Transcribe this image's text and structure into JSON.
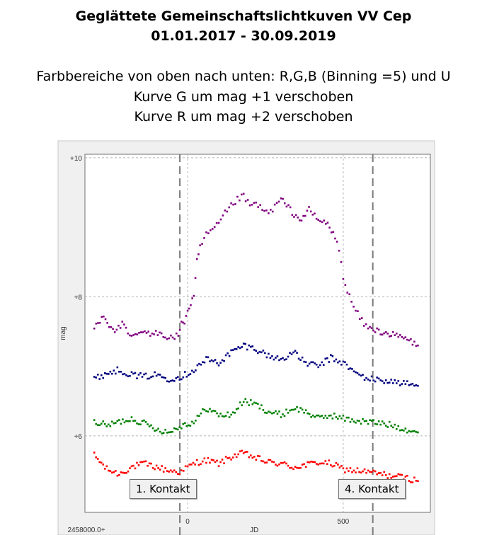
{
  "header": {
    "title_line1": "Geglättete Gemeinschaftslichtkuven VV Cep",
    "title_line2": "01.01.2017  -  30.09.2019",
    "desc_line1": "Farbbereiche  von oben nach unten: R,G,B  (Binning =5) und U",
    "desc_line2": "Kurve G um mag +1 verschoben",
    "desc_line3": "Kurve R um mag +2 verschoben"
  },
  "annotations": {
    "contact1": "1. Kontakt",
    "contact4": "4. Kontakt"
  },
  "colors": {
    "R": "#ff0000",
    "G": "#008000",
    "B": "#000080",
    "U": "#800080"
  },
  "chart_data": {
    "type": "scatter",
    "xlabel": "JD",
    "ylabel": "mag",
    "x_offset_label": "2458000.0+",
    "xlim": [
      -330,
      780
    ],
    "ylim": [
      10.05,
      4.9
    ],
    "y_inverted": true,
    "x_ticks": [
      {
        "value": 0,
        "label": "0"
      },
      {
        "value": 500,
        "label": "500"
      }
    ],
    "y_ticks": [
      {
        "value": 6,
        "label": "+6"
      },
      {
        "value": 8,
        "label": "+8"
      },
      {
        "value": 10,
        "label": "+10"
      }
    ],
    "grid": true,
    "contact_lines": [
      -25,
      595
    ],
    "series": [
      {
        "name": "R",
        "color": "#ff0000",
        "points": [
          [
            -300,
            5.72
          ],
          [
            -260,
            5.52
          ],
          [
            -220,
            5.45
          ],
          [
            -180,
            5.55
          ],
          [
            -140,
            5.6
          ],
          [
            -100,
            5.55
          ],
          [
            -60,
            5.5
          ],
          [
            -20,
            5.48
          ],
          [
            0,
            5.55
          ],
          [
            30,
            5.62
          ],
          [
            60,
            5.65
          ],
          [
            100,
            5.6
          ],
          [
            140,
            5.7
          ],
          [
            180,
            5.75
          ],
          [
            220,
            5.68
          ],
          [
            260,
            5.62
          ],
          [
            300,
            5.6
          ],
          [
            340,
            5.55
          ],
          [
            380,
            5.58
          ],
          [
            420,
            5.62
          ],
          [
            460,
            5.6
          ],
          [
            500,
            5.52
          ],
          [
            540,
            5.5
          ],
          [
            580,
            5.48
          ],
          [
            620,
            5.45
          ],
          [
            660,
            5.42
          ],
          [
            700,
            5.4
          ],
          [
            740,
            5.35
          ]
        ]
      },
      {
        "name": "G",
        "color": "#008000",
        "points": [
          [
            -300,
            6.2
          ],
          [
            -260,
            6.15
          ],
          [
            -220,
            6.2
          ],
          [
            -180,
            6.25
          ],
          [
            -140,
            6.18
          ],
          [
            -100,
            6.1
          ],
          [
            -60,
            6.05
          ],
          [
            -20,
            6.15
          ],
          [
            20,
            6.2
          ],
          [
            60,
            6.4
          ],
          [
            100,
            6.3
          ],
          [
            140,
            6.3
          ],
          [
            180,
            6.5
          ],
          [
            220,
            6.45
          ],
          [
            260,
            6.35
          ],
          [
            300,
            6.3
          ],
          [
            340,
            6.4
          ],
          [
            380,
            6.35
          ],
          [
            420,
            6.25
          ],
          [
            460,
            6.3
          ],
          [
            500,
            6.25
          ],
          [
            540,
            6.22
          ],
          [
            580,
            6.2
          ],
          [
            620,
            6.18
          ],
          [
            660,
            6.15
          ],
          [
            700,
            6.1
          ],
          [
            740,
            6.05
          ]
        ]
      },
      {
        "name": "B",
        "color": "#000080",
        "points": [
          [
            -300,
            6.82
          ],
          [
            -260,
            6.9
          ],
          [
            -220,
            6.95
          ],
          [
            -180,
            6.88
          ],
          [
            -140,
            6.85
          ],
          [
            -100,
            6.88
          ],
          [
            -60,
            6.82
          ],
          [
            -20,
            6.85
          ],
          [
            20,
            6.95
          ],
          [
            60,
            7.1
          ],
          [
            100,
            7.05
          ],
          [
            140,
            7.2
          ],
          [
            180,
            7.3
          ],
          [
            220,
            7.25
          ],
          [
            260,
            7.15
          ],
          [
            300,
            7.1
          ],
          [
            340,
            7.2
          ],
          [
            380,
            7.05
          ],
          [
            420,
            7.0
          ],
          [
            460,
            7.12
          ],
          [
            500,
            7.05
          ],
          [
            540,
            6.9
          ],
          [
            580,
            6.82
          ],
          [
            620,
            6.8
          ],
          [
            660,
            6.78
          ],
          [
            700,
            6.75
          ],
          [
            740,
            6.72
          ]
        ]
      },
      {
        "name": "U",
        "color": "#800080",
        "points": [
          [
            -300,
            7.55
          ],
          [
            -270,
            7.75
          ],
          [
            -240,
            7.5
          ],
          [
            -210,
            7.6
          ],
          [
            -180,
            7.4
          ],
          [
            -150,
            7.5
          ],
          [
            -120,
            7.45
          ],
          [
            -90,
            7.5
          ],
          [
            -60,
            7.4
          ],
          [
            -30,
            7.45
          ],
          [
            -20,
            7.6
          ],
          [
            -10,
            7.65
          ],
          [
            0,
            7.8
          ],
          [
            10,
            7.9
          ],
          [
            20,
            8.0
          ],
          [
            30,
            8.5
          ],
          [
            40,
            8.7
          ],
          [
            60,
            8.9
          ],
          [
            80,
            8.95
          ],
          [
            100,
            9.05
          ],
          [
            120,
            9.2
          ],
          [
            140,
            9.3
          ],
          [
            160,
            9.4
          ],
          [
            180,
            9.45
          ],
          [
            200,
            9.3
          ],
          [
            220,
            9.35
          ],
          [
            240,
            9.25
          ],
          [
            260,
            9.2
          ],
          [
            280,
            9.3
          ],
          [
            300,
            9.4
          ],
          [
            330,
            9.25
          ],
          [
            360,
            9.1
          ],
          [
            390,
            9.25
          ],
          [
            420,
            9.1
          ],
          [
            450,
            9.05
          ],
          [
            480,
            8.8
          ],
          [
            500,
            8.3
          ],
          [
            520,
            8.0
          ],
          [
            540,
            7.8
          ],
          [
            560,
            7.65
          ],
          [
            580,
            7.55
          ],
          [
            620,
            7.5
          ],
          [
            660,
            7.45
          ],
          [
            700,
            7.4
          ],
          [
            740,
            7.3
          ]
        ]
      }
    ]
  }
}
